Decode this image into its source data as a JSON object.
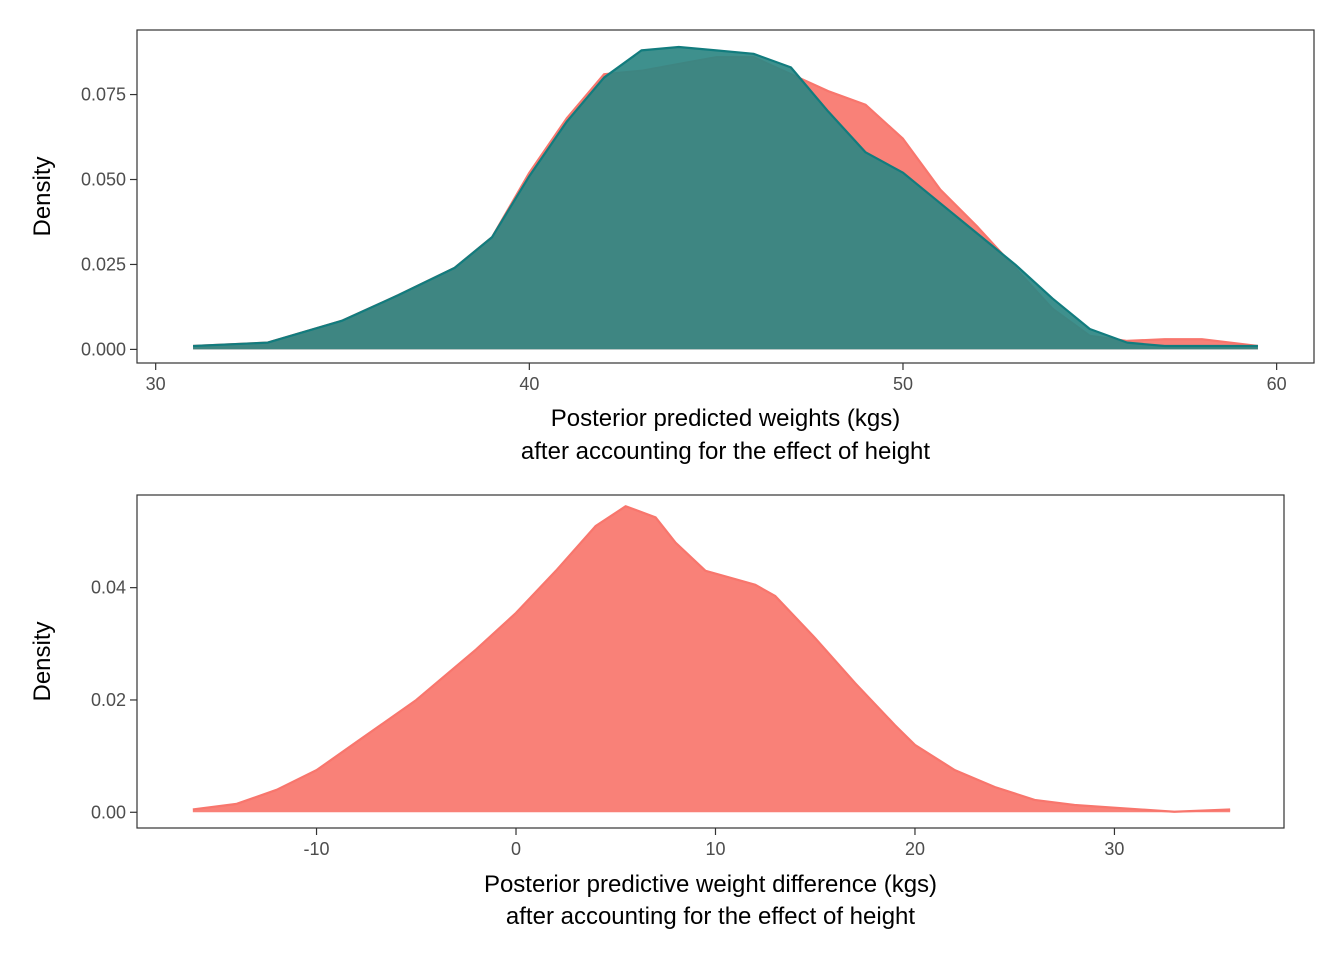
{
  "chart_data": [
    {
      "type": "area",
      "chart": "density",
      "xlabel": "Posterior predicted weights (kgs)",
      "xlabel_line2": "after accounting for the effect of height",
      "ylabel": "Density",
      "xlim": [
        29.5,
        61
      ],
      "ylim": [
        -0.004,
        0.094
      ],
      "x_ticks": [
        30,
        40,
        50,
        60
      ],
      "x_tick_labels": [
        "30",
        "40",
        "50",
        "60"
      ],
      "y_ticks": [
        0,
        0.025,
        0.05,
        0.075
      ],
      "y_tick_labels": [
        "0.000",
        "0.025",
        "0.050",
        "0.075"
      ],
      "grid": false,
      "series": [
        {
          "color": "#F8766D",
          "fill": "#F8766D",
          "x": [
            31.0,
            33.0,
            35.0,
            36.5,
            38.0,
            39.0,
            40.0,
            41.0,
            42.0,
            43.0,
            44.0,
            45.0,
            46.0,
            47.0,
            48.0,
            49.0,
            50.0,
            51.0,
            52.0,
            53.0,
            54.0,
            55.0,
            56.0,
            57.0,
            58.0,
            59.5
          ],
          "y": [
            0.001,
            0.002,
            0.0085,
            0.016,
            0.024,
            0.033,
            0.052,
            0.068,
            0.081,
            0.082,
            0.084,
            0.086,
            0.086,
            0.081,
            0.076,
            0.072,
            0.062,
            0.047,
            0.036,
            0.024,
            0.012,
            0.004,
            0.0025,
            0.003,
            0.003,
            0.001
          ]
        },
        {
          "color": "#127C7E",
          "fill": "#2E8783",
          "x": [
            31.0,
            33.0,
            35.0,
            36.5,
            38.0,
            39.0,
            40.0,
            41.0,
            42.0,
            43.0,
            44.0,
            45.0,
            46.0,
            47.0,
            48.0,
            49.0,
            50.0,
            51.0,
            52.0,
            53.0,
            54.0,
            55.0,
            56.0,
            57.0,
            58.0,
            59.5
          ],
          "y": [
            0.001,
            0.002,
            0.0085,
            0.016,
            0.024,
            0.033,
            0.051,
            0.067,
            0.08,
            0.088,
            0.089,
            0.088,
            0.087,
            0.083,
            0.07,
            0.058,
            0.052,
            0.043,
            0.034,
            0.025,
            0.015,
            0.006,
            0.002,
            0.001,
            0.001,
            0.001
          ]
        }
      ]
    },
    {
      "type": "area",
      "chart": "density",
      "xlabel": "Posterior predictive weight difference (kgs)",
      "xlabel_line2": "after accounting for the effect of height",
      "ylabel": "Density",
      "xlim": [
        -19,
        38.5
      ],
      "ylim": [
        -0.0028,
        0.0565
      ],
      "x_ticks": [
        -10,
        0,
        10,
        20,
        30
      ],
      "x_tick_labels": [
        "-10",
        "0",
        "10",
        "20",
        "30"
      ],
      "y_ticks": [
        0,
        0.02,
        0.04
      ],
      "y_tick_labels": [
        "0.00",
        "0.02",
        "0.04"
      ],
      "grid": false,
      "series": [
        {
          "color": "#F8766D",
          "fill": "#F8766D",
          "x": [
            -16.2,
            -14.0,
            -12.0,
            -10.0,
            -8.0,
            -5.0,
            -2.0,
            0.0,
            2.0,
            4.0,
            5.5,
            7.0,
            8.0,
            9.5,
            11.0,
            12.0,
            13.0,
            15.0,
            17.0,
            19.0,
            20.0,
            22.0,
            24.0,
            26.0,
            28.0,
            30.0,
            33.0,
            35.8
          ],
          "y": [
            0.0005,
            0.0015,
            0.004,
            0.0075,
            0.0125,
            0.02,
            0.029,
            0.0355,
            0.043,
            0.051,
            0.0545,
            0.0525,
            0.048,
            0.043,
            0.0415,
            0.0405,
            0.0385,
            0.031,
            0.023,
            0.0155,
            0.012,
            0.0075,
            0.0045,
            0.0022,
            0.0013,
            0.0008,
            0.0001,
            0.0005
          ]
        }
      ]
    }
  ]
}
